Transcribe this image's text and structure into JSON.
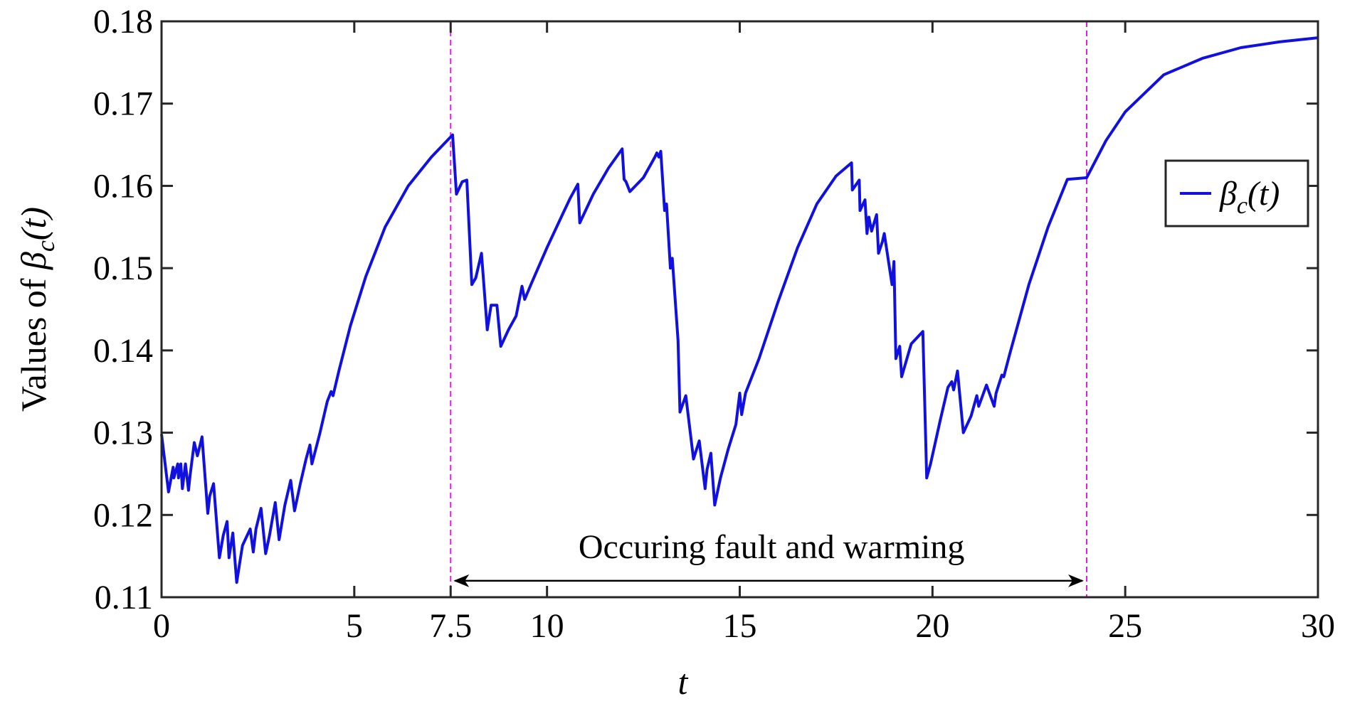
{
  "chart_data": {
    "type": "line",
    "ylabel_prefix": "Values of ",
    "ylabel_math": "β",
    "ylabel_sub": "c",
    "ylabel_arg": "(t)",
    "xlabel": "t",
    "xlim": [
      0,
      30
    ],
    "ylim": [
      0.11,
      0.18
    ],
    "x_ticks": [
      0,
      5,
      7.5,
      10,
      15,
      20,
      25,
      30
    ],
    "x_tick_labels": [
      "0",
      "5",
      "7.5",
      "10",
      "15",
      "20",
      "25",
      "30"
    ],
    "y_ticks": [
      0.11,
      0.12,
      0.13,
      0.14,
      0.15,
      0.16,
      0.17,
      0.18
    ],
    "y_tick_labels": [
      "0.11",
      "0.12",
      "0.13",
      "0.14",
      "0.15",
      "0.16",
      "0.17",
      "0.18"
    ],
    "grid": false,
    "legend": {
      "placement": "right",
      "label_math": "β",
      "label_sub": "c",
      "label_arg": "(t)"
    },
    "vlines": [
      {
        "x": 7.5,
        "color": "#e020e0",
        "style": "dashed"
      },
      {
        "x": 24,
        "color": "#e020e0",
        "style": "dashed"
      }
    ],
    "annotation": {
      "text": "Occuring fault and warming",
      "x_start": 7.5,
      "x_end": 24,
      "y": 0.112
    },
    "series": [
      {
        "color": "#1010e0",
        "x": [
          0,
          0.18,
          0.3,
          0.32,
          0.42,
          0.44,
          0.5,
          0.54,
          0.62,
          0.7,
          0.74,
          0.85,
          0.93,
          1.0,
          1.05,
          1.2,
          1.25,
          1.35,
          1.5,
          1.6,
          1.7,
          1.75,
          1.85,
          1.95,
          2.05,
          2.1,
          2.3,
          2.38,
          2.45,
          2.58,
          2.7,
          2.8,
          2.95,
          3.05,
          3.2,
          3.35,
          3.45,
          3.6,
          3.75,
          3.85,
          3.9,
          4.1,
          4.3,
          4.4,
          4.45,
          4.6,
          4.9,
          5.3,
          5.8,
          6.4,
          7.0,
          7.55,
          7.65,
          7.8,
          7.92,
          8.05,
          8.15,
          8.3,
          8.45,
          8.55,
          8.7,
          8.8,
          9.0,
          9.2,
          9.35,
          9.42,
          9.6,
          10.0,
          10.4,
          10.6,
          10.8,
          10.85,
          11.2,
          11.6,
          11.95,
          12.0,
          12.05,
          12.15,
          12.5,
          12.8,
          12.85,
          12.9,
          12.95,
          13.05,
          13.1,
          13.2,
          13.25,
          13.4,
          13.45,
          13.6,
          13.8,
          13.95,
          14.1,
          14.15,
          14.25,
          14.35,
          14.5,
          14.7,
          14.9,
          15.0,
          15.05,
          15.15,
          15.25,
          15.5,
          16.0,
          16.5,
          17.0,
          17.5,
          17.9,
          17.92,
          18.1,
          18.12,
          18.25,
          18.3,
          18.35,
          18.42,
          18.55,
          18.6,
          18.7,
          18.75,
          18.95,
          19.0,
          19.05,
          19.15,
          19.2,
          19.35,
          19.45,
          19.75,
          19.85,
          19.95,
          20.2,
          20.4,
          20.5,
          20.55,
          20.65,
          20.8,
          21.0,
          21.15,
          21.2,
          21.4,
          21.6,
          21.65,
          21.8,
          21.85,
          22.0,
          22.5,
          23.0,
          23.5,
          24.0,
          24.5,
          25.0,
          26.0,
          27.0,
          28.0,
          29.0,
          30.0
        ],
        "y": [
          0.1298,
          0.1228,
          0.1258,
          0.1245,
          0.1262,
          0.1245,
          0.1262,
          0.1232,
          0.1262,
          0.123,
          0.1248,
          0.1288,
          0.1272,
          0.1285,
          0.1295,
          0.1202,
          0.1223,
          0.1238,
          0.1148,
          0.1175,
          0.1192,
          0.1148,
          0.1178,
          0.1118,
          0.1148,
          0.1163,
          0.1183,
          0.1155,
          0.1183,
          0.1208,
          0.1153,
          0.1175,
          0.1215,
          0.117,
          0.1212,
          0.1242,
          0.1205,
          0.1238,
          0.1268,
          0.1285,
          0.1262,
          0.1298,
          0.1338,
          0.135,
          0.1345,
          0.1375,
          0.143,
          0.149,
          0.155,
          0.16,
          0.1635,
          0.1662,
          0.159,
          0.1605,
          0.1607,
          0.148,
          0.1488,
          0.1518,
          0.1425,
          0.1455,
          0.1455,
          0.1405,
          0.1425,
          0.1442,
          0.1478,
          0.1462,
          0.1482,
          0.1525,
          0.1565,
          0.1585,
          0.1602,
          0.1555,
          0.159,
          0.1622,
          0.1645,
          0.1608,
          0.1605,
          0.1593,
          0.161,
          0.1635,
          0.164,
          0.1635,
          0.1642,
          0.157,
          0.1578,
          0.15,
          0.1512,
          0.1412,
          0.1325,
          0.1345,
          0.1268,
          0.129,
          0.1232,
          0.1255,
          0.1275,
          0.1212,
          0.1245,
          0.128,
          0.131,
          0.1348,
          0.1322,
          0.1348,
          0.136,
          0.139,
          0.146,
          0.1525,
          0.1578,
          0.1612,
          0.1628,
          0.1595,
          0.1607,
          0.157,
          0.1583,
          0.1542,
          0.1562,
          0.1545,
          0.1565,
          0.1518,
          0.1532,
          0.1542,
          0.148,
          0.1508,
          0.139,
          0.1405,
          0.1368,
          0.1392,
          0.1408,
          0.1423,
          0.1245,
          0.1262,
          0.1315,
          0.1355,
          0.1362,
          0.1352,
          0.1375,
          0.13,
          0.132,
          0.1345,
          0.1332,
          0.1358,
          0.1332,
          0.1348,
          0.137,
          0.1368,
          0.1395,
          0.148,
          0.155,
          0.1608,
          0.161,
          0.1655,
          0.169,
          0.1735,
          0.1755,
          0.1768,
          0.1775,
          0.178
        ]
      }
    ]
  }
}
